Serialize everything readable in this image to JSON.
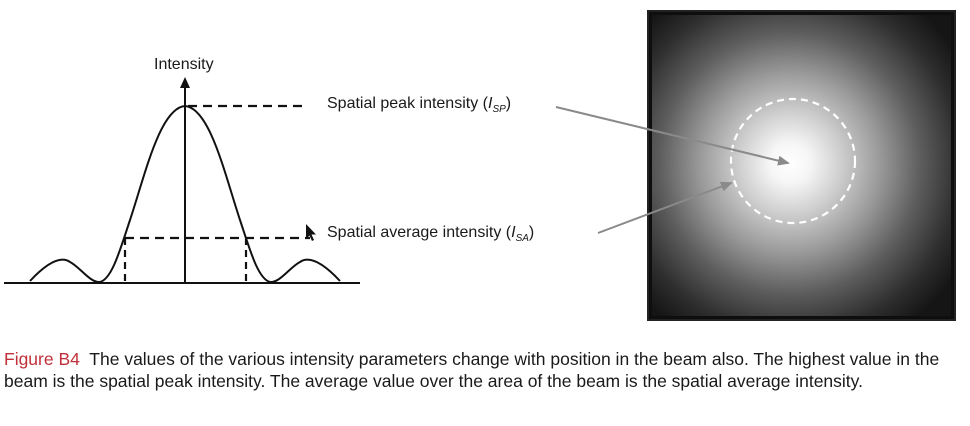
{
  "diagram": {
    "axis_label": "Intensity",
    "peak_label": {
      "text": "Spatial peak intensity (",
      "symbol": "I",
      "subscript": "SP",
      "close": ")"
    },
    "average_label": {
      "text": "Spatial average intensity (",
      "symbol": "I",
      "subscript": "SA",
      "close": ")"
    }
  },
  "caption": {
    "label": "Figure B4",
    "text": "The values of the various intensity parameters change with position in the beam also. The highest value in the beam is the spatial peak intensity. The average value over the area of the beam is the spatial average intensity."
  },
  "colors": {
    "caption_label": "#c0303a",
    "image_background": "#0c0c0c",
    "arrow": "#777777"
  }
}
